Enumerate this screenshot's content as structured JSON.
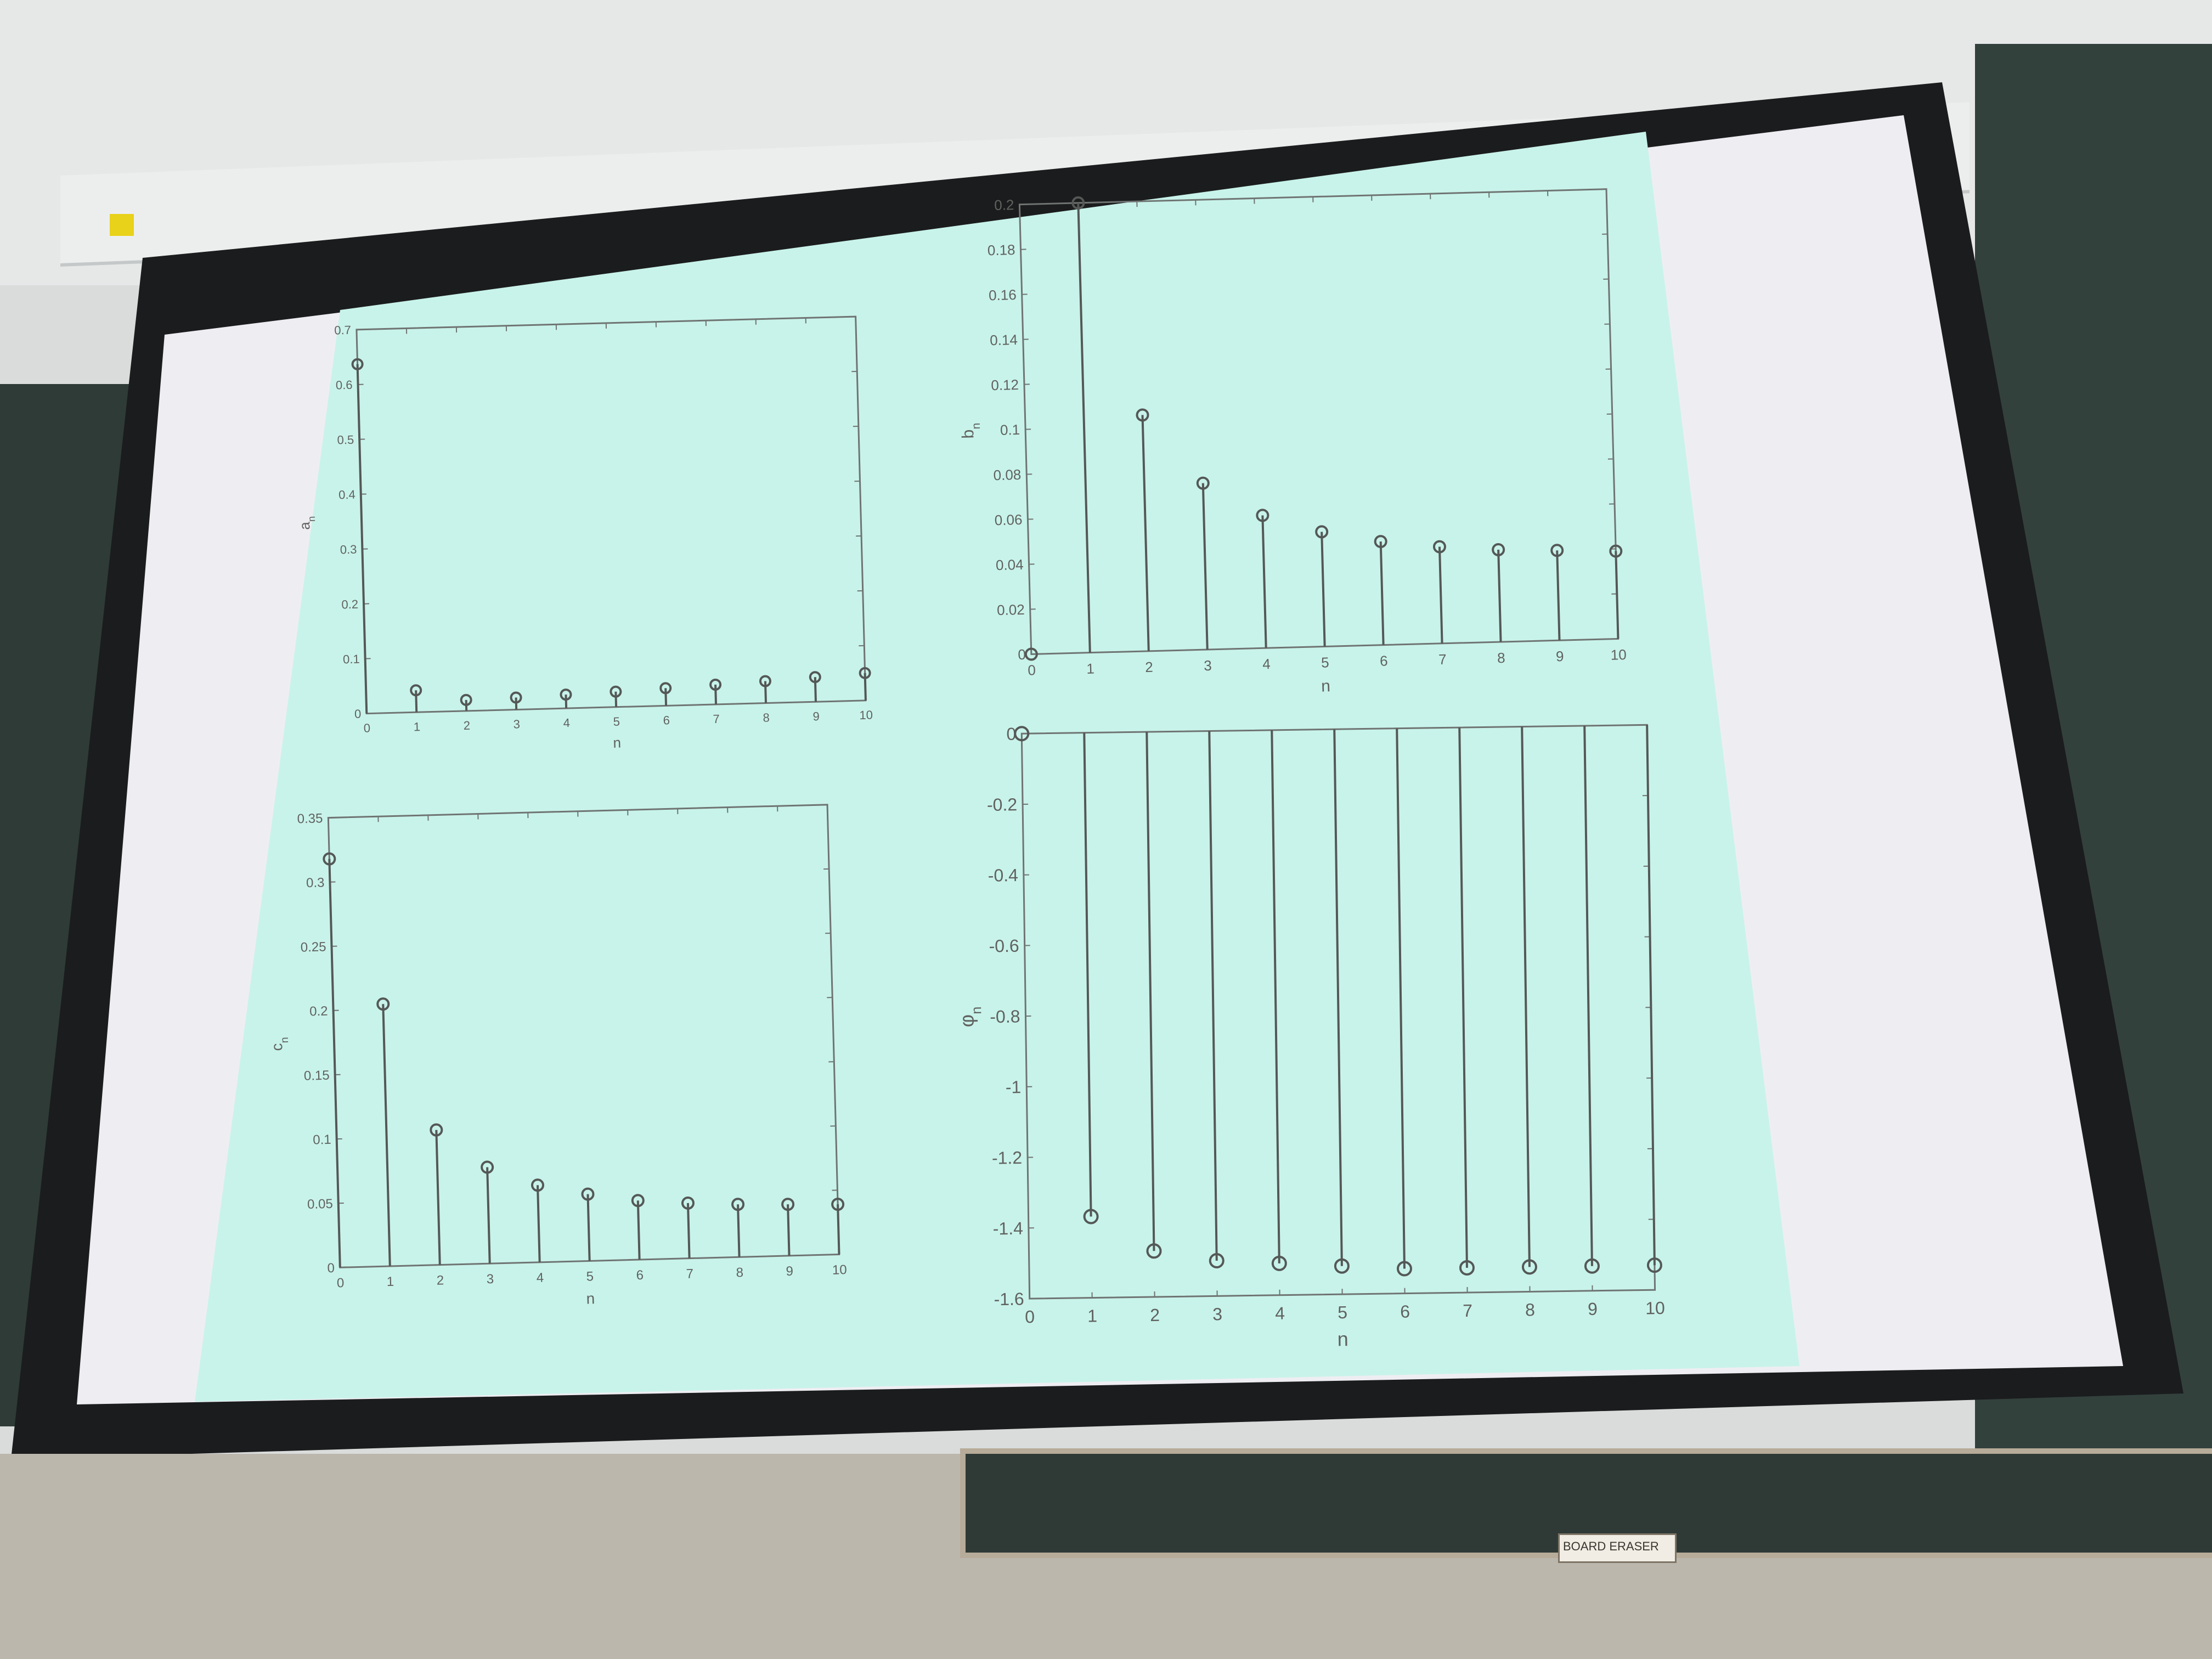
{
  "chart_data": [
    {
      "type": "stem",
      "ylabel": "a",
      "ylabel_subscript": "n",
      "xlabel": "n",
      "xlim": [
        0,
        10
      ],
      "ylim": [
        0,
        0.7
      ],
      "xticks": [
        "0",
        "1",
        "2",
        "3",
        "4",
        "5",
        "6",
        "7",
        "8",
        "9",
        "10"
      ],
      "yticks": [
        "0",
        "0.1",
        "0.2",
        "0.3",
        "0.4",
        "0.5",
        "0.6",
        "0.7"
      ],
      "x": [
        0,
        1,
        2,
        3,
        4,
        5,
        6,
        7,
        8,
        9,
        10
      ],
      "y": [
        0.637,
        0.04,
        0.02,
        0.022,
        0.025,
        0.028,
        0.032,
        0.036,
        0.04,
        0.045,
        0.05
      ]
    },
    {
      "type": "stem",
      "ylabel": "b",
      "ylabel_subscript": "n",
      "xlabel": "n",
      "xlim": [
        0,
        10
      ],
      "ylim": [
        0,
        0.2
      ],
      "xticks": [
        "0",
        "1",
        "2",
        "3",
        "4",
        "5",
        "6",
        "7",
        "8",
        "9",
        "10"
      ],
      "yticks": [
        "0",
        "0.02",
        "0.04",
        "0.06",
        "0.08",
        "0.1",
        "0.12",
        "0.14",
        "0.16",
        "0.18",
        "0.2"
      ],
      "x": [
        0,
        1,
        2,
        3,
        4,
        5,
        6,
        7,
        8,
        9,
        10
      ],
      "y": [
        0,
        0.2,
        0.105,
        0.074,
        0.059,
        0.051,
        0.046,
        0.043,
        0.041,
        0.04,
        0.039
      ]
    },
    {
      "type": "stem",
      "ylabel": "c",
      "ylabel_subscript": "n",
      "xlabel": "n",
      "xlim": [
        0,
        10
      ],
      "ylim": [
        0,
        0.35
      ],
      "xticks": [
        "0",
        "1",
        "2",
        "3",
        "4",
        "5",
        "6",
        "7",
        "8",
        "9",
        "10"
      ],
      "yticks": [
        "0",
        "0.05",
        "0.1",
        "0.15",
        "0.2",
        "0.25",
        "0.3",
        "0.35"
      ],
      "x": [
        0,
        1,
        2,
        3,
        4,
        5,
        6,
        7,
        8,
        9,
        10
      ],
      "y": [
        0.318,
        0.204,
        0.105,
        0.075,
        0.06,
        0.052,
        0.046,
        0.043,
        0.041,
        0.04,
        0.039
      ]
    },
    {
      "type": "stem",
      "ylabel": "φ",
      "ylabel_subscript": "n",
      "xlabel": "n",
      "xlim": [
        0,
        10
      ],
      "ylim": [
        -1.6,
        0
      ],
      "xticks": [
        "0",
        "1",
        "2",
        "3",
        "4",
        "5",
        "6",
        "7",
        "8",
        "9",
        "10"
      ],
      "yticks": [
        "-1.6",
        "-1.4",
        "-1.2",
        "-1",
        "-0.8",
        "-0.6",
        "-0.4",
        "-0.2",
        "0"
      ],
      "x": [
        0,
        1,
        2,
        3,
        4,
        5,
        6,
        7,
        8,
        9,
        10
      ],
      "y": [
        0,
        -1.37,
        -1.47,
        -1.5,
        -1.51,
        -1.52,
        -1.53,
        -1.53,
        -1.53,
        -1.53,
        -1.53
      ]
    }
  ],
  "eraser_label": "BOARD ERASER"
}
